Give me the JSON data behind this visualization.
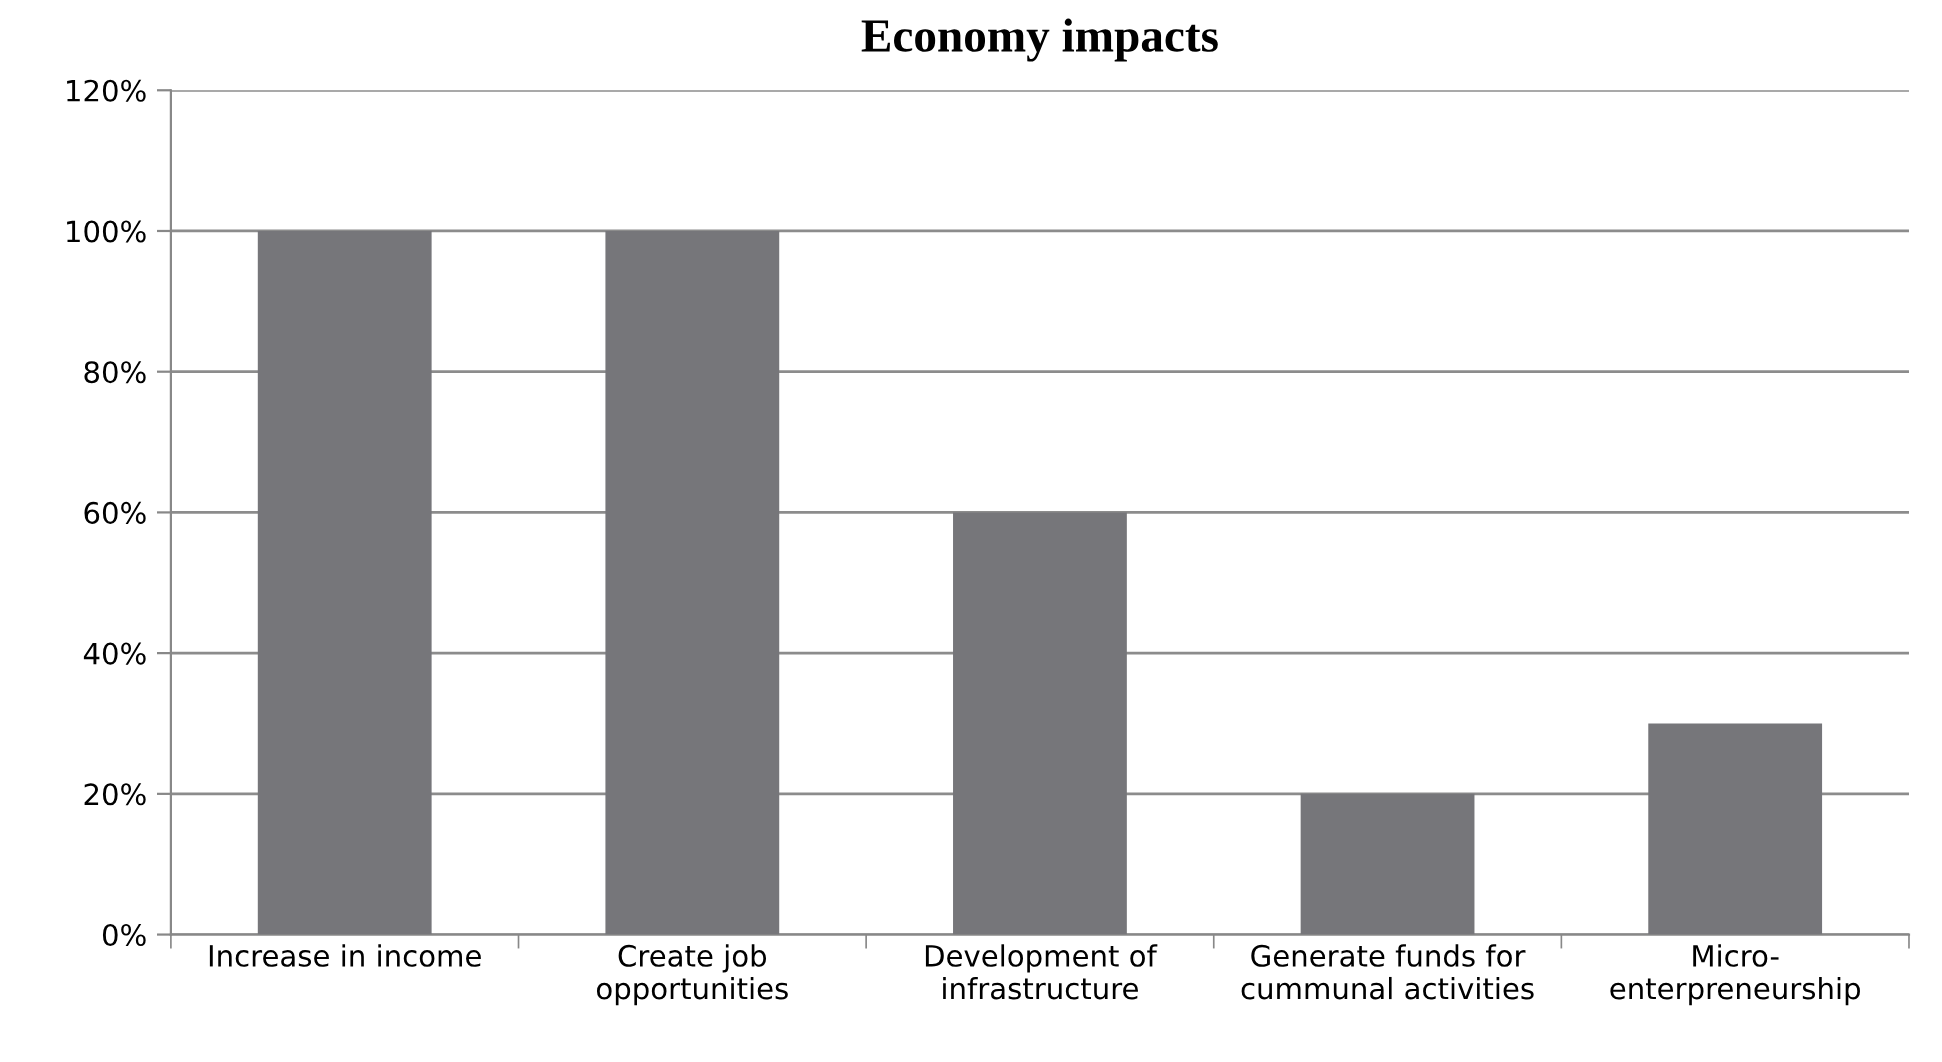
{
  "chart_data": {
    "type": "bar",
    "title": "Economy impacts",
    "categories": [
      "Increase in income",
      "Create job\nopportunities",
      "Development of\ninfrastructure",
      "Generate funds for\ncummunal activities",
      "Micro-\nenterpreneurship"
    ],
    "values": [
      100,
      100,
      60,
      20,
      30
    ],
    "color": "#76767a",
    "ylim": [
      0,
      120
    ],
    "yticks": [
      {
        "value": 0,
        "label": "0%"
      },
      {
        "value": 20,
        "label": "20%"
      },
      {
        "value": 40,
        "label": "40%"
      },
      {
        "value": 60,
        "label": "60%"
      },
      {
        "value": 80,
        "label": "80%"
      },
      {
        "value": 100,
        "label": "100%"
      },
      {
        "value": 120,
        "label": "120%"
      }
    ],
    "grid": "y"
  }
}
